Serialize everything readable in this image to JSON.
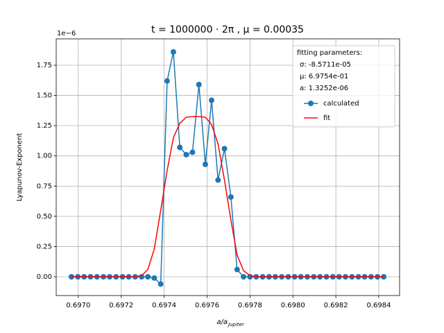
{
  "chart_data": {
    "type": "line",
    "title": "t = 1000000 · 2π , μ = 0.00035",
    "xlabel": {
      "main": "a/a",
      "sub": "Jupiter"
    },
    "ylabel": "Lyapunov-Exponent",
    "y_offset_text": "1e−6",
    "x": [
      0.696968,
      0.696998,
      0.697027,
      0.697057,
      0.697087,
      0.697117,
      0.697146,
      0.697176,
      0.697206,
      0.697235,
      0.697265,
      0.697295,
      0.697324,
      0.697354,
      0.697384,
      0.697414,
      0.697443,
      0.697473,
      0.697503,
      0.697532,
      0.697562,
      0.697592,
      0.697621,
      0.697651,
      0.697681,
      0.697711,
      0.69774,
      0.69777,
      0.6978,
      0.697829,
      0.697859,
      0.697889,
      0.697918,
      0.697948,
      0.697978,
      0.698008,
      0.698037,
      0.698067,
      0.698097,
      0.698126,
      0.698156,
      0.698186,
      0.698215,
      0.698245,
      0.698275,
      0.698305,
      0.698334,
      0.698364,
      0.698394,
      0.698423
    ],
    "series": [
      {
        "name": "calculated",
        "color": "#1f77b4",
        "marker": true,
        "values": [
          0,
          0,
          0,
          0,
          0,
          0,
          0,
          0,
          0,
          0,
          0,
          0,
          0,
          -0.01,
          -0.06,
          1.62,
          1.86,
          1.07,
          1.01,
          1.03,
          1.59,
          0.93,
          1.46,
          0.8,
          1.06,
          0.66,
          0.06,
          0,
          0,
          0,
          0,
          0,
          0,
          0,
          0,
          0,
          0,
          0,
          0,
          0,
          0,
          0,
          0,
          0,
          0,
          0,
          0,
          0,
          0,
          0
        ]
      },
      {
        "name": "fit",
        "color": "#ff0000",
        "marker": false,
        "values": [
          0,
          0,
          0,
          0,
          0,
          0,
          0,
          0,
          0,
          0,
          0,
          0.01,
          0.06,
          0.23,
          0.55,
          0.88,
          1.15,
          1.27,
          1.32,
          1.325,
          1.325,
          1.32,
          1.26,
          1.1,
          0.8,
          0.47,
          0.18,
          0.05,
          0.01,
          0,
          0,
          0,
          0,
          0,
          0,
          0,
          0,
          0,
          0,
          0,
          0,
          0,
          0,
          0,
          0,
          0,
          0,
          0,
          0,
          0
        ]
      }
    ],
    "legend_title": "fitting parameters:",
    "legend_params": [
      "σ: -8.5711e-05",
      "μ: 6.9754e-01",
      "a: 1.3252e-06"
    ],
    "legend": "upper right",
    "grid": true,
    "xlim": [
      0.696897,
      0.698497
    ],
    "ylim": [
      -0.155,
      1.968
    ],
    "xticks": [
      {
        "value": 0.697,
        "label": "0.6970"
      },
      {
        "value": 0.6972,
        "label": "0.6972"
      },
      {
        "value": 0.6974,
        "label": "0.6974"
      },
      {
        "value": 0.6976,
        "label": "0.6976"
      },
      {
        "value": 0.6978,
        "label": "0.6978"
      },
      {
        "value": 0.698,
        "label": "0.6980"
      },
      {
        "value": 0.6982,
        "label": "0.6982"
      },
      {
        "value": 0.6984,
        "label": "0.6984"
      }
    ],
    "yticks": [
      {
        "value": 0,
        "label": "0.00"
      },
      {
        "value": 0.25,
        "label": "0.25"
      },
      {
        "value": 0.5,
        "label": "0.50"
      },
      {
        "value": 0.75,
        "label": "0.75"
      },
      {
        "value": 1,
        "label": "1.00"
      },
      {
        "value": 1.25,
        "label": "1.25"
      },
      {
        "value": 1.5,
        "label": "1.50"
      },
      {
        "value": 1.75,
        "label": "1.75"
      }
    ]
  }
}
